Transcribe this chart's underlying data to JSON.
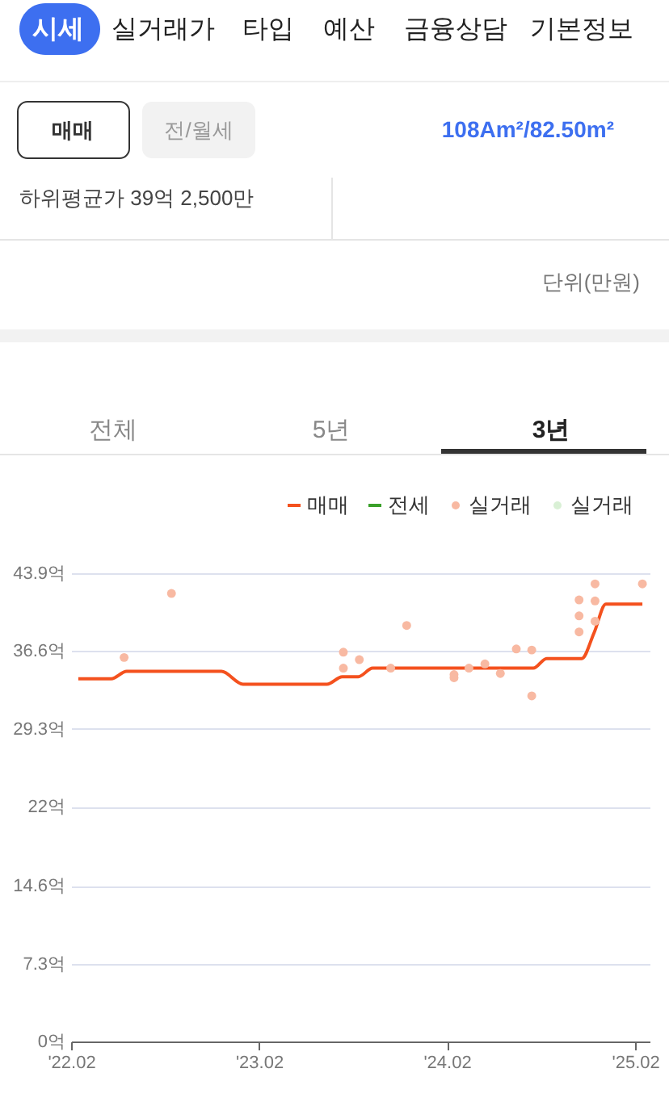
{
  "chart_data": {
    "type": "line",
    "annotations": [
      "시세",
      "실거래가",
      "타입",
      "예산",
      "금융상담",
      "기본정보",
      "매매",
      "전/월세",
      "108Am²/82.50m²",
      "하위평균가 39억 2,500만",
      "단위(만원)",
      "전체",
      "5년",
      "3년"
    ],
    "series": [
      {
        "name": "매매",
        "color": "#f4511e",
        "x": [
          "2022-02-15",
          "2022-04-20",
          "2022-05-20",
          "2022-11-20",
          "2023-01-01",
          "2023-06-13",
          "2023-07-13",
          "2023-08-13",
          "2023-09-10",
          "2024-07-18",
          "2024-08-13",
          "2024-10-20",
          "2024-11-13",
          "2024-12-06",
          "2025-02-15"
        ],
        "values": [
          34.0,
          34.0,
          34.7,
          34.7,
          33.5,
          33.5,
          34.2,
          34.2,
          35.0,
          35.0,
          35.9,
          35.9,
          38.3,
          41.0,
          41.0
        ]
      },
      {
        "name": "전세",
        "color": "#3aa02a"
      },
      {
        "name": "실거래",
        "type": "scatter",
        "color": "#f8b9a2",
        "x": [
          "2022-05-15",
          "2022-08-15",
          "2023-07-15",
          "2023-07-15",
          "2023-08-15",
          "2023-10-15",
          "2023-11-15",
          "2024-02-15",
          "2024-02-15",
          "2024-03-15",
          "2024-04-15",
          "2024-05-15",
          "2024-06-15",
          "2024-07-15",
          "2024-07-15",
          "2024-10-15",
          "2024-10-15",
          "2024-10-15",
          "2024-11-15",
          "2024-11-15",
          "2024-11-15",
          "2025-02-15"
        ],
        "values": [
          36.0,
          42.0,
          36.5,
          35.0,
          35.8,
          35.0,
          39.0,
          34.4,
          34.1,
          35.0,
          35.4,
          34.5,
          36.8,
          36.7,
          32.4,
          41.4,
          39.9,
          38.4,
          42.9,
          41.3,
          39.4,
          42.9
        ]
      },
      {
        "name": "실거래",
        "type": "scatter",
        "color": "#d9f0d5"
      }
    ],
    "xlim": [
      "2022-02-01",
      "2025-03-01"
    ],
    "xticks": [
      {
        "value": "2022-02-01",
        "label": "'22.02"
      },
      {
        "value": "2023-02-01",
        "label": "'23.02"
      },
      {
        "value": "2024-02-01",
        "label": "'24.02"
      },
      {
        "value": "2025-02-01",
        "label": "'25.02"
      }
    ],
    "ylim": [
      0,
      43.9
    ],
    "yticks": [
      {
        "value": 0,
        "label": "0억"
      },
      {
        "value": 7.3,
        "label": "7.3억"
      },
      {
        "value": 14.6,
        "label": "14.6억"
      },
      {
        "value": 22,
        "label": "22억"
      },
      {
        "value": 29.3,
        "label": "29.3억"
      },
      {
        "value": 36.6,
        "label": "36.6억"
      },
      {
        "value": 43.9,
        "label": "43.9억"
      }
    ],
    "grid": "y",
    "legend": "top right"
  }
}
